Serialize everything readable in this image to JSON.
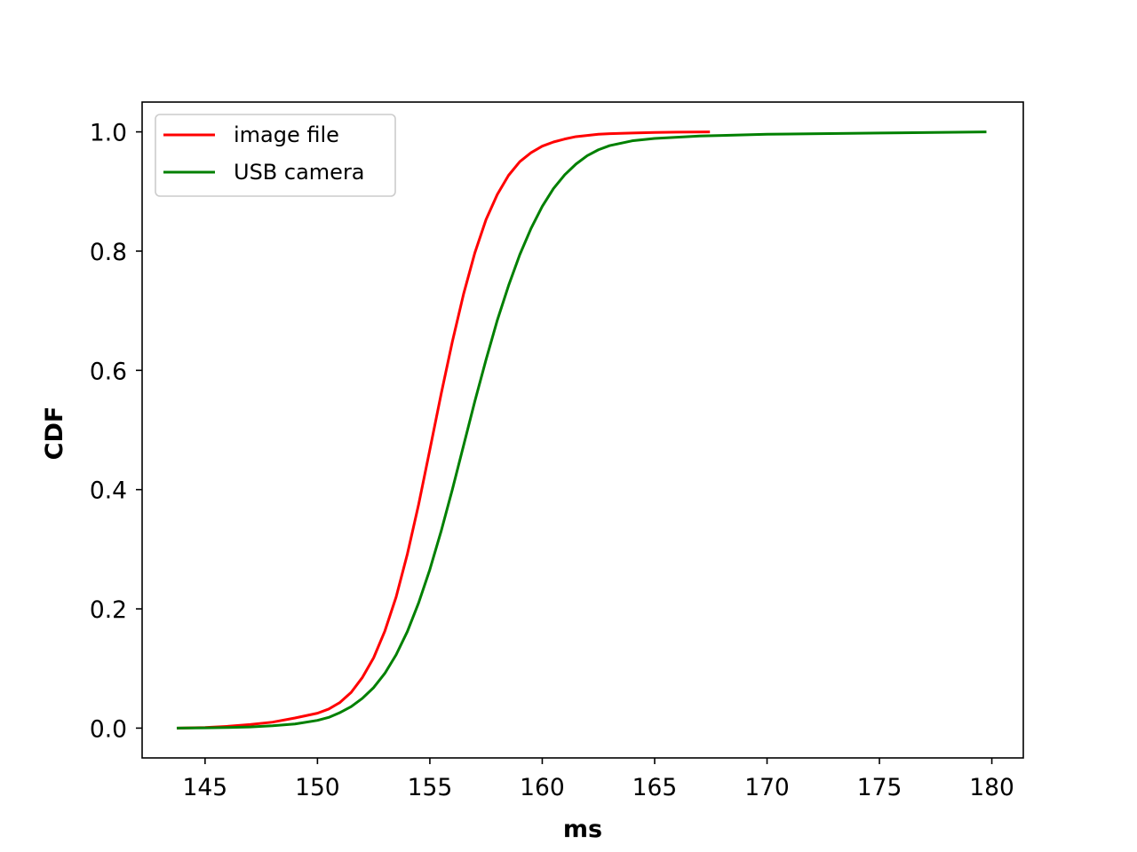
{
  "chart_data": {
    "type": "line",
    "xlabel": "ms",
    "ylabel": "CDF",
    "xlim": [
      142.2,
      181.4
    ],
    "ylim": [
      -0.05,
      1.05
    ],
    "xticks": [
      145,
      150,
      155,
      160,
      165,
      170,
      175,
      180
    ],
    "yticks": [
      0.0,
      0.2,
      0.4,
      0.6,
      0.8,
      1.0
    ],
    "xtick_labels": [
      "145",
      "150",
      "155",
      "160",
      "165",
      "170",
      "175",
      "180"
    ],
    "ytick_labels": [
      "0.0",
      "0.2",
      "0.4",
      "0.6",
      "0.8",
      "1.0"
    ],
    "grid": false,
    "legend_position": "top-left",
    "series": [
      {
        "name": "image file",
        "color": "#ff0000",
        "x": [
          143.8,
          145,
          146,
          147,
          148,
          149,
          150,
          150.5,
          151,
          151.5,
          152,
          152.5,
          153,
          153.5,
          154,
          154.5,
          155,
          155.5,
          156,
          156.5,
          157,
          157.5,
          158,
          158.5,
          159,
          159.5,
          160,
          160.5,
          161,
          161.5,
          162,
          162.5,
          163,
          164,
          165,
          166,
          167.4
        ],
        "y": [
          0.0,
          0.001,
          0.003,
          0.006,
          0.01,
          0.017,
          0.025,
          0.032,
          0.043,
          0.06,
          0.085,
          0.118,
          0.163,
          0.22,
          0.292,
          0.375,
          0.467,
          0.56,
          0.648,
          0.728,
          0.797,
          0.853,
          0.895,
          0.927,
          0.95,
          0.965,
          0.976,
          0.983,
          0.988,
          0.992,
          0.994,
          0.996,
          0.997,
          0.998,
          0.999,
          0.9995,
          1.0
        ]
      },
      {
        "name": "USB camera",
        "color": "#008000",
        "x": [
          143.8,
          145,
          146,
          147,
          148,
          149,
          150,
          150.5,
          151,
          151.5,
          152,
          152.5,
          153,
          153.5,
          154,
          154.5,
          155,
          155.5,
          156,
          156.5,
          157,
          157.5,
          158,
          158.5,
          159,
          159.5,
          160,
          160.5,
          161,
          161.5,
          162,
          162.5,
          163,
          164,
          165,
          166,
          167,
          168,
          170,
          175,
          179.7
        ],
        "y": [
          0.0,
          0.0005,
          0.001,
          0.002,
          0.004,
          0.007,
          0.013,
          0.018,
          0.026,
          0.036,
          0.05,
          0.068,
          0.092,
          0.123,
          0.162,
          0.21,
          0.266,
          0.33,
          0.4,
          0.474,
          0.548,
          0.618,
          0.684,
          0.742,
          0.794,
          0.838,
          0.875,
          0.905,
          0.928,
          0.946,
          0.96,
          0.97,
          0.977,
          0.985,
          0.989,
          0.991,
          0.993,
          0.994,
          0.996,
          0.998,
          1.0
        ]
      }
    ]
  }
}
